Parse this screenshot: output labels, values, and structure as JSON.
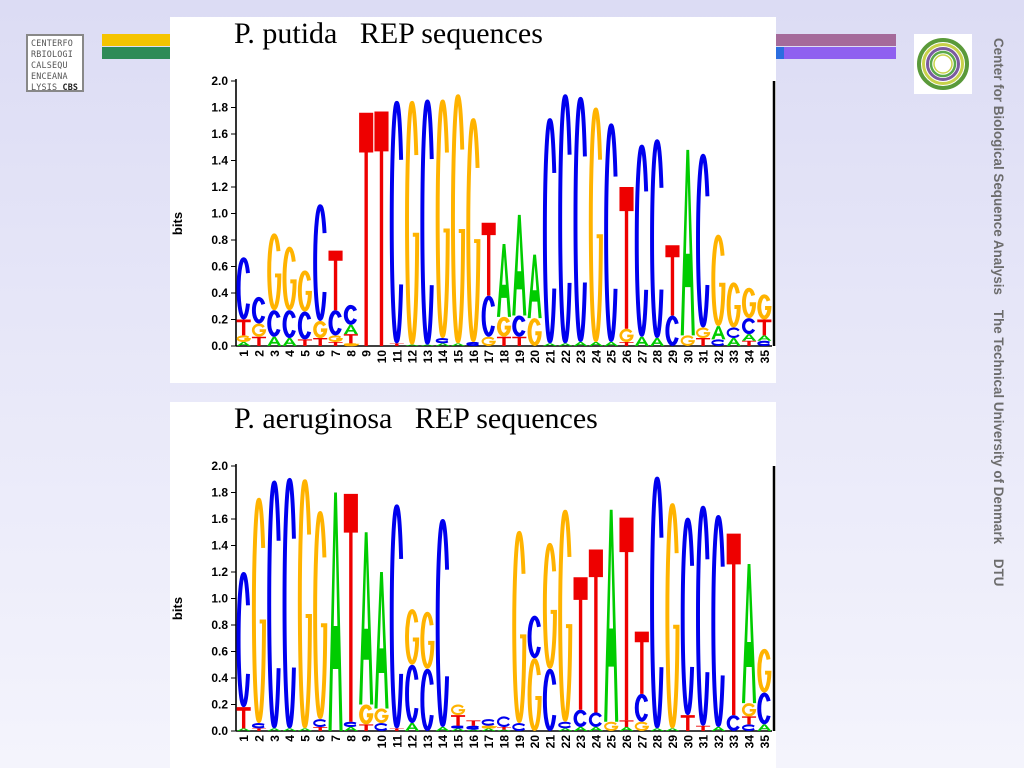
{
  "logos": {
    "cbs_lines": [
      "CENTERFO",
      "RBIOLOGI",
      "CALSEQU",
      "ENCEANA",
      "LYSIS "
    ],
    "cbs_bold": "CBS"
  },
  "side_caption": "Center for Biological Sequence Analysis    The Technical University of Denmark    DTU",
  "colors": {
    "A": "#00cc00",
    "C": "#0000ee",
    "G": "#ffb300",
    "T": "#ee0000"
  },
  "chart_data": [
    {
      "type": "sequence-logo",
      "title": "P. putida   REP sequences",
      "ylabel": "bits",
      "xlabel": "",
      "ylim": [
        0,
        2
      ],
      "yticks": [
        "0.0",
        "0.2",
        "0.4",
        "0.6",
        "0.8",
        "1.0",
        "1.2",
        "1.4",
        "1.6",
        "1.8",
        "2.0"
      ],
      "positions": [
        "1",
        "2",
        "3",
        "4",
        "5",
        "6",
        "7",
        "8",
        "9",
        "10",
        "11",
        "12",
        "13",
        "14",
        "15",
        "16",
        "17",
        "18",
        "19",
        "20",
        "21",
        "22",
        "23",
        "24",
        "25",
        "26",
        "27",
        "28",
        "29",
        "30",
        "31",
        "32",
        "33",
        "34",
        "35"
      ],
      "stacks": [
        [
          [
            "A",
            0.03
          ],
          [
            "G",
            0.05
          ],
          [
            "T",
            0.12
          ],
          [
            "C",
            0.47
          ]
        ],
        [
          [
            "T",
            0.07
          ],
          [
            "G",
            0.1
          ],
          [
            "C",
            0.2
          ]
        ],
        [
          [
            "A",
            0.07
          ],
          [
            "C",
            0.2
          ],
          [
            "G",
            0.58
          ]
        ],
        [
          [
            "A",
            0.06
          ],
          [
            "C",
            0.21
          ],
          [
            "G",
            0.48
          ]
        ],
        [
          [
            "T",
            0.05
          ],
          [
            "C",
            0.21
          ],
          [
            "G",
            0.31
          ]
        ],
        [
          [
            "T",
            0.06
          ],
          [
            "G",
            0.13
          ],
          [
            "C",
            0.88
          ]
        ],
        [
          [
            "T",
            0.03
          ],
          [
            "G",
            0.05
          ],
          [
            "C",
            0.19
          ],
          [
            "T",
            0.45
          ]
        ],
        [
          [
            "G",
            0.02
          ],
          [
            "T",
            0.07
          ],
          [
            "A",
            0.07
          ],
          [
            "C",
            0.15
          ]
        ],
        [
          [
            "T",
            1.76
          ]
        ],
        [
          [
            "T",
            1.77
          ]
        ],
        [
          [
            "T",
            0.02
          ],
          [
            "C",
            1.83
          ]
        ],
        [
          [
            "A",
            0.01
          ],
          [
            "G",
            1.84
          ]
        ],
        [
          [
            "A",
            0.01
          ],
          [
            "C",
            1.85
          ]
        ],
        [
          [
            "A",
            0.02
          ],
          [
            "C",
            0.04
          ],
          [
            "G",
            1.8
          ]
        ],
        [
          [
            "A",
            0.02
          ],
          [
            "G",
            1.88
          ]
        ],
        [
          [
            "C",
            0.03
          ],
          [
            "G",
            1.69
          ]
        ],
        [
          [
            "G",
            0.07
          ],
          [
            "C",
            0.31
          ],
          [
            "T",
            0.55
          ]
        ],
        [
          [
            "T",
            0.07
          ],
          [
            "G",
            0.15
          ],
          [
            "A",
            0.55
          ]
        ],
        [
          [
            "T",
            0.07
          ],
          [
            "C",
            0.16
          ],
          [
            "A",
            0.76
          ]
        ],
        [
          [
            "G",
            0.21
          ],
          [
            "A",
            0.48
          ]
        ],
        [
          [
            "A",
            0.02
          ],
          [
            "C",
            1.7
          ]
        ],
        [
          [
            "A",
            0.02
          ],
          [
            "C",
            1.88
          ]
        ],
        [
          [
            "A",
            0.03
          ],
          [
            "C",
            1.85
          ]
        ],
        [
          [
            "A",
            0.03
          ],
          [
            "G",
            1.77
          ]
        ],
        [
          [
            "A",
            0.03
          ],
          [
            "C",
            1.65
          ]
        ],
        [
          [
            "T",
            0.03
          ],
          [
            "G",
            0.1
          ],
          [
            "T",
            1.07
          ]
        ],
        [
          [
            "A",
            0.07
          ],
          [
            "C",
            1.45
          ]
        ],
        [
          [
            "A",
            0.06
          ],
          [
            "C",
            1.5
          ]
        ],
        [
          [
            "C",
            0.23
          ],
          [
            "T",
            0.53
          ]
        ],
        [
          [
            "G",
            0.08
          ],
          [
            "A",
            1.4
          ]
        ],
        [
          [
            "T",
            0.06
          ],
          [
            "G",
            0.08
          ],
          [
            "C",
            1.31
          ]
        ],
        [
          [
            "C",
            0.05
          ],
          [
            "A",
            0.1
          ],
          [
            "G",
            0.69
          ]
        ],
        [
          [
            "A",
            0.06
          ],
          [
            "C",
            0.08
          ],
          [
            "G",
            0.34
          ]
        ],
        [
          [
            "T",
            0.04
          ],
          [
            "A",
            0.05
          ],
          [
            "C",
            0.12
          ],
          [
            "G",
            0.23
          ]
        ],
        [
          [
            "C",
            0.04
          ],
          [
            "A",
            0.04
          ],
          [
            "T",
            0.12
          ],
          [
            "G",
            0.19
          ]
        ]
      ]
    },
    {
      "type": "sequence-logo",
      "title": "P. aeruginosa   REP sequences",
      "ylabel": "bits",
      "xlabel": "",
      "ylim": [
        0,
        2
      ],
      "yticks": [
        "0.0",
        "0.2",
        "0.4",
        "0.6",
        "0.8",
        "1.0",
        "1.2",
        "1.4",
        "1.6",
        "1.8",
        "2.0"
      ],
      "positions": [
        "1",
        "2",
        "3",
        "4",
        "5",
        "6",
        "7",
        "8",
        "9",
        "10",
        "11",
        "12",
        "13",
        "14",
        "15",
        "16",
        "17",
        "18",
        "19",
        "20",
        "21",
        "22",
        "23",
        "24",
        "25",
        "26",
        "27",
        "28",
        "29",
        "30",
        "31",
        "32",
        "33",
        "34",
        "35"
      ],
      "stacks": [
        [
          [
            "A",
            0.02
          ],
          [
            "T",
            0.16
          ],
          [
            "C",
            1.02
          ]
        ],
        [
          [
            "T",
            0.02
          ],
          [
            "C",
            0.04
          ],
          [
            "G",
            1.7
          ]
        ],
        [
          [
            "A",
            0.02
          ],
          [
            "C",
            1.87
          ]
        ],
        [
          [
            "A",
            0.02
          ],
          [
            "C",
            1.89
          ]
        ],
        [
          [
            "A",
            0.02
          ],
          [
            "G",
            1.88
          ]
        ],
        [
          [
            "T",
            0.03
          ],
          [
            "C",
            0.06
          ],
          [
            "G",
            1.57
          ]
        ],
        [
          [
            "A",
            1.8
          ]
        ],
        [
          [
            "A",
            0.03
          ],
          [
            "C",
            0.04
          ],
          [
            "T",
            1.72
          ]
        ],
        [
          [
            "T",
            0.05
          ],
          [
            "G",
            0.15
          ],
          [
            "A",
            1.3
          ]
        ],
        [
          [
            "C",
            0.06
          ],
          [
            "G",
            0.11
          ],
          [
            "A",
            1.03
          ]
        ],
        [
          [
            "T",
            0.02
          ],
          [
            "C",
            1.69
          ]
        ],
        [
          [
            "A",
            0.06
          ],
          [
            "C",
            0.44
          ],
          [
            "G",
            0.42
          ]
        ],
        [
          [
            "C",
            0.47
          ],
          [
            "G",
            0.43
          ]
        ],
        [
          [
            "A",
            0.03
          ],
          [
            "C",
            1.57
          ]
        ],
        [
          [
            "A",
            0.02
          ],
          [
            "C",
            0.02
          ],
          [
            "T",
            0.08
          ],
          [
            "G",
            0.08
          ]
        ],
        [
          [
            "A",
            0.01
          ],
          [
            "C",
            0.03
          ],
          [
            "T",
            0.04
          ]
        ],
        [
          [
            "A",
            0.02
          ],
          [
            "G",
            0.02
          ],
          [
            "C",
            0.05
          ]
        ],
        [
          [
            "A",
            0.01
          ],
          [
            "T",
            0.02
          ],
          [
            "C",
            0.08
          ]
        ],
        [
          [
            "C",
            0.06
          ],
          [
            "G",
            1.45
          ]
        ],
        [
          [
            "G",
            0.55
          ],
          [
            "C",
            0.32
          ]
        ],
        [
          [
            "C",
            0.47
          ],
          [
            "G",
            0.95
          ]
        ],
        [
          [
            "A",
            0.02
          ],
          [
            "C",
            0.05
          ],
          [
            "G",
            1.6
          ]
        ],
        [
          [
            "A",
            0.03
          ],
          [
            "C",
            0.13
          ],
          [
            "T",
            1.0
          ]
        ],
        [
          [
            "A",
            0.03
          ],
          [
            "C",
            0.11
          ],
          [
            "T",
            1.23
          ]
        ],
        [
          [
            "G",
            0.07
          ],
          [
            "A",
            1.6
          ]
        ],
        [
          [
            "A",
            0.03
          ],
          [
            "T",
            0.05
          ],
          [
            "T",
            1.53
          ]
        ],
        [
          [
            "G",
            0.07
          ],
          [
            "C",
            0.21
          ],
          [
            "T",
            0.47
          ]
        ],
        [
          [
            "A",
            0.02
          ],
          [
            "C",
            1.9
          ]
        ],
        [
          [
            "A",
            0.02
          ],
          [
            "G",
            1.7
          ]
        ],
        [
          [
            "T",
            0.12
          ],
          [
            "C",
            1.49
          ]
        ],
        [
          [
            "T",
            0.04
          ],
          [
            "C",
            1.66
          ]
        ],
        [
          [
            "A",
            0.03
          ],
          [
            "C",
            1.6
          ]
        ],
        [
          [
            "C",
            0.12
          ],
          [
            "T",
            1.37
          ]
        ],
        [
          [
            "C",
            0.05
          ],
          [
            "T",
            0.06
          ],
          [
            "G",
            0.1
          ],
          [
            "A",
            1.05
          ]
        ],
        [
          [
            "A",
            0.05
          ],
          [
            "C",
            0.24
          ],
          [
            "G",
            0.33
          ]
        ]
      ]
    }
  ]
}
